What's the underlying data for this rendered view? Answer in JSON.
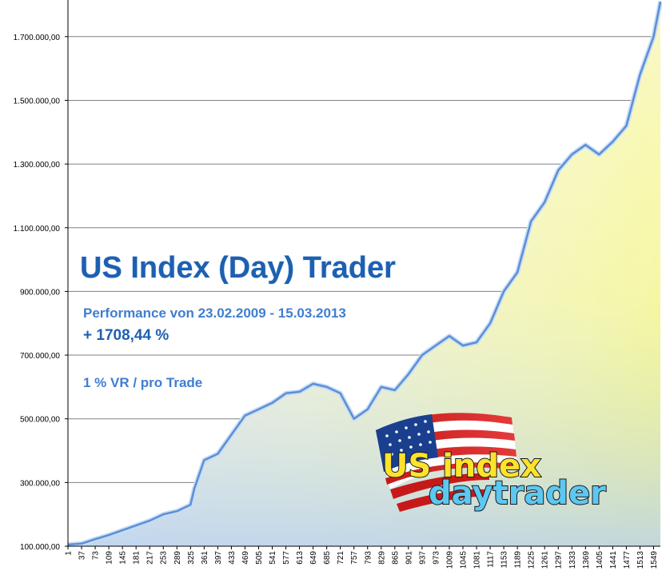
{
  "chart_data": {
    "type": "area",
    "y_tick_labels": [
      "100.000,00",
      "300.000,00",
      "500.000,00",
      "700.000,00",
      "900.000,00",
      "1.100.000,00",
      "1.300.000,00",
      "1.500.000,00",
      "1.700.000,00"
    ],
    "y_tick_values": [
      100000,
      300000,
      500000,
      700000,
      900000,
      1100000,
      1300000,
      1500000,
      1700000
    ],
    "x_tick_labels": [
      "1",
      "37",
      "73",
      "109",
      "145",
      "181",
      "217",
      "253",
      "289",
      "325",
      "361",
      "397",
      "433",
      "469",
      "505",
      "541",
      "577",
      "613",
      "649",
      "685",
      "721",
      "757",
      "793",
      "829",
      "865",
      "901",
      "937",
      "973",
      "1009",
      "1045",
      "1081",
      "1117",
      "1153",
      "1189",
      "1225",
      "1261",
      "1297",
      "1333",
      "1369",
      "1405",
      "1441",
      "1477",
      "1513",
      "1549"
    ],
    "ylim": [
      100000,
      1810000
    ],
    "xlim": [
      1,
      1567
    ],
    "grid": true,
    "series": [
      {
        "x": [
          1,
          37,
          73,
          109,
          145,
          181,
          217,
          253,
          289,
          325,
          335,
          361,
          397,
          433,
          469,
          505,
          541,
          577,
          613,
          649,
          685,
          721,
          757,
          793,
          829,
          865,
          901,
          937,
          973,
          1009,
          1045,
          1081,
          1117,
          1153,
          1189,
          1225,
          1261,
          1297,
          1333,
          1369,
          1405,
          1441,
          1477,
          1513,
          1549,
          1567
        ],
        "y": [
          105000,
          108000,
          122000,
          135000,
          150000,
          165000,
          180000,
          200000,
          210000,
          230000,
          280000,
          370000,
          390000,
          450000,
          510000,
          530000,
          550000,
          580000,
          585000,
          610000,
          600000,
          580000,
          500000,
          530000,
          600000,
          590000,
          640000,
          700000,
          730000,
          760000,
          730000,
          740000,
          800000,
          900000,
          960000,
          1120000,
          1180000,
          1280000,
          1330000,
          1360000,
          1330000,
          1370000,
          1420000,
          1580000,
          1700000,
          1810000
        ]
      }
    ],
    "title": "US Index (Day) Trader",
    "subtitle": "Performance  von  23.02.2009 - 15.03.2013",
    "performance": "+ 1708,44 %",
    "risk_note": "1 % VR / pro Trade",
    "logo_line1": "US index",
    "logo_line2": "daytrader",
    "colors": {
      "line": "#5b8fd6",
      "fill_top": "#ffff00",
      "fill_mid": "#f7f7d0",
      "fill_bottom": "#c8daf5",
      "grid": "#808080",
      "title": "#1f5fb0"
    }
  }
}
